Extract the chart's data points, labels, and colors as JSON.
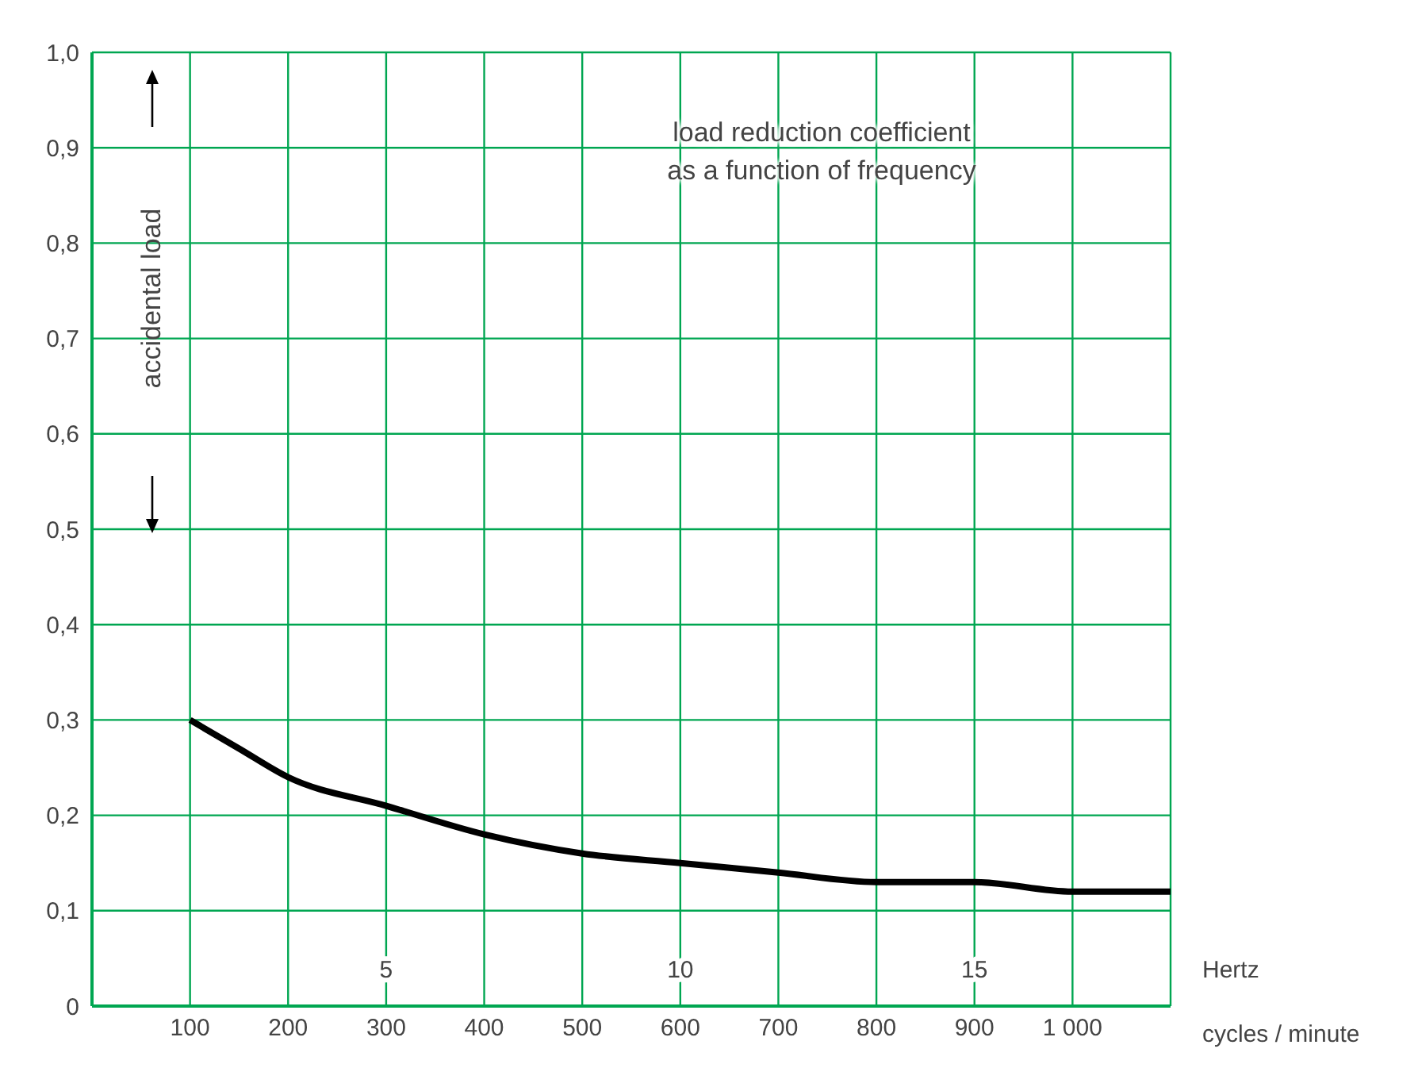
{
  "chart_data": {
    "type": "line",
    "title": "load reduction coefficient\nas a function of frequency",
    "xlabel": "cycles / minute",
    "x2label": "Hertz",
    "ylabel": "accidental load",
    "x": [
      100,
      150,
      200,
      300,
      400,
      500,
      600,
      700,
      800,
      900,
      1000,
      1100
    ],
    "series": [
      {
        "color": "#000000",
        "values": [
          0.3,
          0.27,
          0.24,
          0.21,
          0.18,
          0.16,
          0.15,
          0.14,
          0.13,
          0.13,
          0.12,
          0.12
        ]
      }
    ],
    "xlim": [
      0,
      1100
    ],
    "xticks": [
      100,
      200,
      300,
      400,
      500,
      600,
      700,
      800,
      900,
      {
        "value": 1000,
        "label": "1 000"
      },
      {
        "value": 1100,
        "label": null
      }
    ],
    "x2lim": [
      0,
      18.333
    ],
    "x2ticks": [
      5,
      10,
      15
    ],
    "ylim": [
      0,
      1
    ],
    "yticks": [
      {
        "value": 0,
        "label": "0"
      },
      {
        "value": 0.1,
        "label": "0,1"
      },
      {
        "value": 0.2,
        "label": "0,2"
      },
      {
        "value": 0.3,
        "label": "0,3"
      },
      {
        "value": 0.4,
        "label": "0,4"
      },
      {
        "value": 0.5,
        "label": "0,5"
      },
      {
        "value": 0.6,
        "label": "0,6"
      },
      {
        "value": 0.7,
        "label": "0,7"
      },
      {
        "value": 0.8,
        "label": "0,8"
      },
      {
        "value": 0.9,
        "label": "0,9"
      },
      {
        "value": 1,
        "label": "1,0"
      }
    ],
    "grid": true,
    "marker": "none",
    "line_style": "solid"
  }
}
